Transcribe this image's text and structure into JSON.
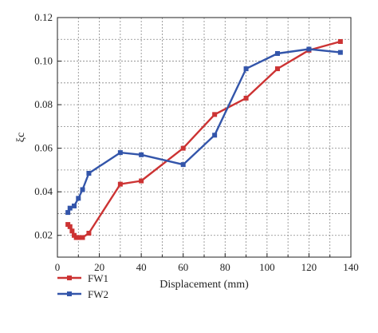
{
  "chart_data": {
    "type": "line",
    "title": "",
    "xlabel": "Displacement (mm)",
    "ylabel": "ξc",
    "xlim": [
      0,
      140
    ],
    "ylim": [
      0.01,
      0.12
    ],
    "x_ticks": [
      0,
      20,
      40,
      60,
      80,
      100,
      120,
      140
    ],
    "y_ticks": [
      0.02,
      0.04,
      0.06,
      0.08,
      0.1,
      0.12
    ],
    "x_tick_labels": [
      "0",
      "20",
      "40",
      "60",
      "80",
      "100",
      "120",
      "140"
    ],
    "y_tick_labels": [
      "0.02",
      "0.04",
      "0.06",
      "0.08",
      "0.10",
      "0.12"
    ],
    "grid": true,
    "legend_position": "bottom-left, below plot",
    "series": [
      {
        "name": "FW1",
        "color": "#cc3333",
        "marker": "square",
        "x": [
          5,
          6,
          7,
          8,
          9,
          10,
          12,
          15,
          30,
          40,
          60,
          75,
          90,
          105,
          120,
          135
        ],
        "y": [
          0.025,
          0.024,
          0.022,
          0.02,
          0.019,
          0.019,
          0.019,
          0.021,
          0.0435,
          0.045,
          0.06,
          0.0755,
          0.083,
          0.0965,
          0.105,
          0.109
        ]
      },
      {
        "name": "FW2",
        "color": "#3355aa",
        "marker": "square",
        "x": [
          5,
          6,
          8,
          10,
          12,
          15,
          30,
          40,
          60,
          75,
          90,
          105,
          120,
          135
        ],
        "y": [
          0.0305,
          0.0325,
          0.0335,
          0.037,
          0.041,
          0.0485,
          0.058,
          0.057,
          0.0525,
          0.066,
          0.0965,
          0.1035,
          0.1055,
          0.104
        ]
      }
    ]
  }
}
